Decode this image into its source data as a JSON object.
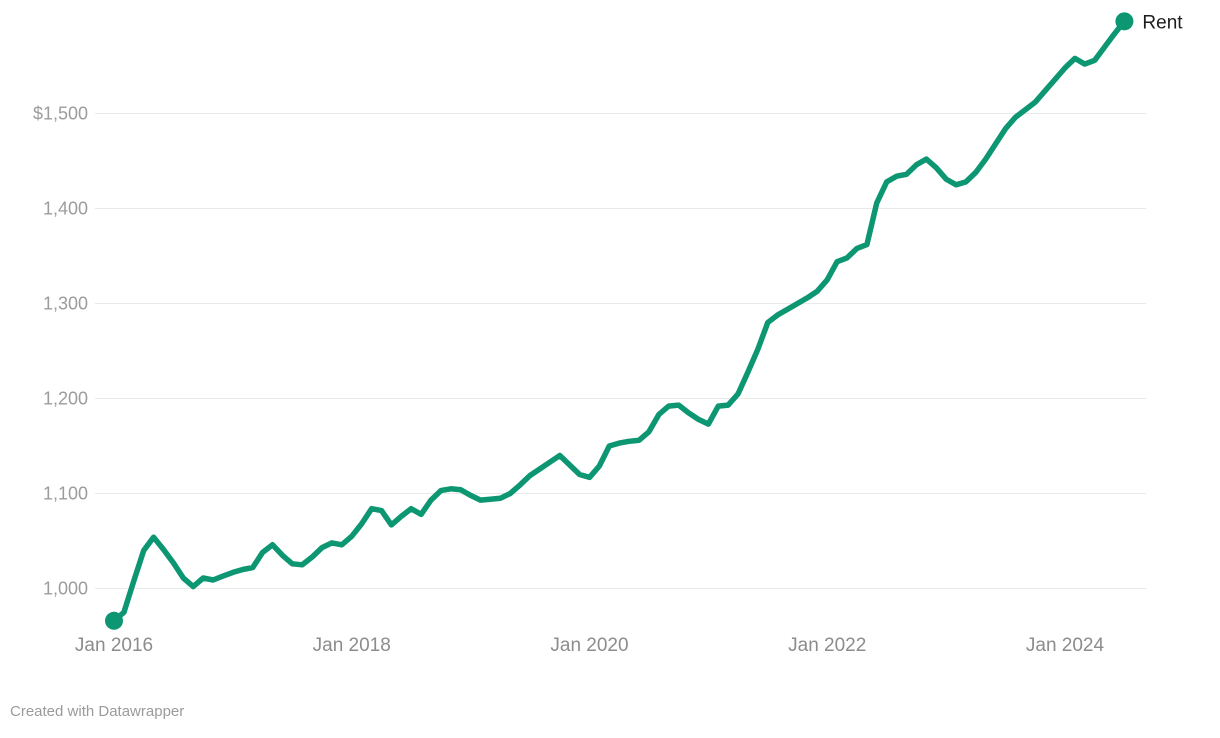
{
  "footer": {
    "credit": "Created with Datawrapper"
  },
  "chart_data": {
    "type": "line",
    "title": "",
    "xlabel": "",
    "ylabel": "",
    "frequency": "monthly",
    "x_start": "Jan 2016",
    "x_end": "Jul 2024",
    "series": [
      {
        "name": "Rent",
        "color": "#0c9672",
        "values": [
          966,
          975,
          1008,
          1040,
          1054,
          1041,
          1027,
          1011,
          1002,
          1011,
          1009,
          1013,
          1017,
          1020,
          1022,
          1038,
          1046,
          1035,
          1026,
          1025,
          1033,
          1043,
          1048,
          1046,
          1055,
          1068,
          1084,
          1082,
          1067,
          1076,
          1084,
          1078,
          1093,
          1103,
          1105,
          1104,
          1098,
          1093,
          1094,
          1095,
          1100,
          1109,
          1119,
          1126,
          1133,
          1140,
          1130,
          1120,
          1117,
          1129,
          1150,
          1153,
          1155,
          1156,
          1165,
          1183,
          1192,
          1193,
          1185,
          1178,
          1173,
          1192,
          1193,
          1205,
          1228,
          1252,
          1280,
          1288,
          1294,
          1300,
          1306,
          1313,
          1325,
          1344,
          1348,
          1358,
          1362,
          1406,
          1428,
          1434,
          1436,
          1446,
          1452,
          1443,
          1431,
          1425,
          1428,
          1438,
          1452,
          1468,
          1484,
          1496,
          1504,
          1512,
          1524,
          1536,
          1548,
          1558,
          1552,
          1556,
          1570,
          1584,
          1597
        ]
      }
    ],
    "y_ticks": [
      {
        "value": 1500,
        "label": "$1,500"
      },
      {
        "value": 1400,
        "label": "1,400"
      },
      {
        "value": 1300,
        "label": "1,300"
      },
      {
        "value": 1200,
        "label": "1,200"
      },
      {
        "value": 1100,
        "label": "1,100"
      },
      {
        "value": 1000,
        "label": "1,000"
      }
    ],
    "x_ticks": [
      {
        "index": 0,
        "label": "Jan 2016"
      },
      {
        "index": 24,
        "label": "Jan 2018"
      },
      {
        "index": 48,
        "label": "Jan 2020"
      },
      {
        "index": 72,
        "label": "Jan 2022"
      },
      {
        "index": 96,
        "label": "Jan 2024"
      }
    ],
    "ylim": [
      960,
      1600
    ],
    "grid": "horizontal",
    "legend_position": "end-of-line",
    "end_point_markers": true,
    "gridline_color": "#e9e9e9",
    "label_color": "#1d1d1d"
  }
}
